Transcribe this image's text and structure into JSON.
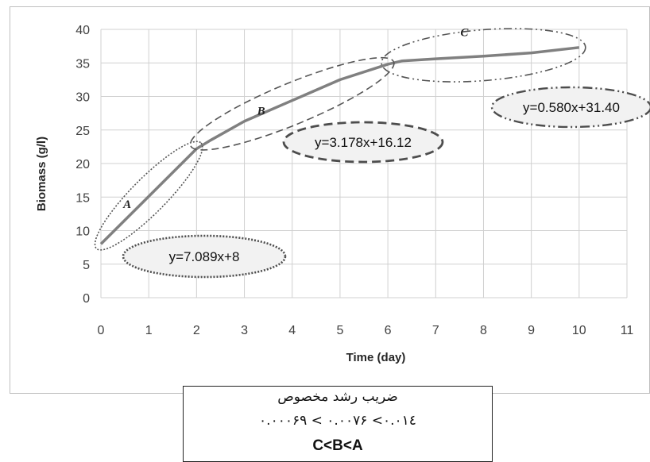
{
  "chart_data": {
    "type": "line",
    "title": "",
    "xlabel": "Time (day)",
    "ylabel": "Biomass (g/l)",
    "xlim": [
      0,
      11
    ],
    "ylim": [
      0,
      40
    ],
    "x_ticks": [
      0,
      1,
      2,
      3,
      4,
      5,
      6,
      7,
      8,
      9,
      10,
      11
    ],
    "y_ticks": [
      0,
      5,
      10,
      15,
      20,
      25,
      30,
      35,
      40
    ],
    "grid": true,
    "line_color": "#808080",
    "series": [
      {
        "x": [
          0,
          2,
          2.3,
          3,
          4,
          5,
          6,
          6.3,
          7,
          8,
          9,
          10
        ],
        "y": [
          8,
          22.2,
          23.5,
          26.3,
          29.4,
          32.5,
          34.8,
          35.3,
          35.6,
          36.0,
          36.5,
          37.3
        ]
      }
    ],
    "segments": [
      {
        "label": "A",
        "equation": "y=7.089x+8",
        "x_range": [
          0,
          2
        ]
      },
      {
        "label": "B",
        "equation": "y=3.178x+16.12",
        "x_range": [
          2,
          6
        ]
      },
      {
        "label": "C",
        "equation": "y=0.580x+31.40",
        "x_range": [
          6,
          10
        ]
      }
    ]
  },
  "summary": {
    "heading": "ضریب رشد مخصوص",
    "values": "۰.۰۰۰۶۹ < ۰.۰۰۷۶ <۰.۰۱٤",
    "order": "C<B<A"
  }
}
